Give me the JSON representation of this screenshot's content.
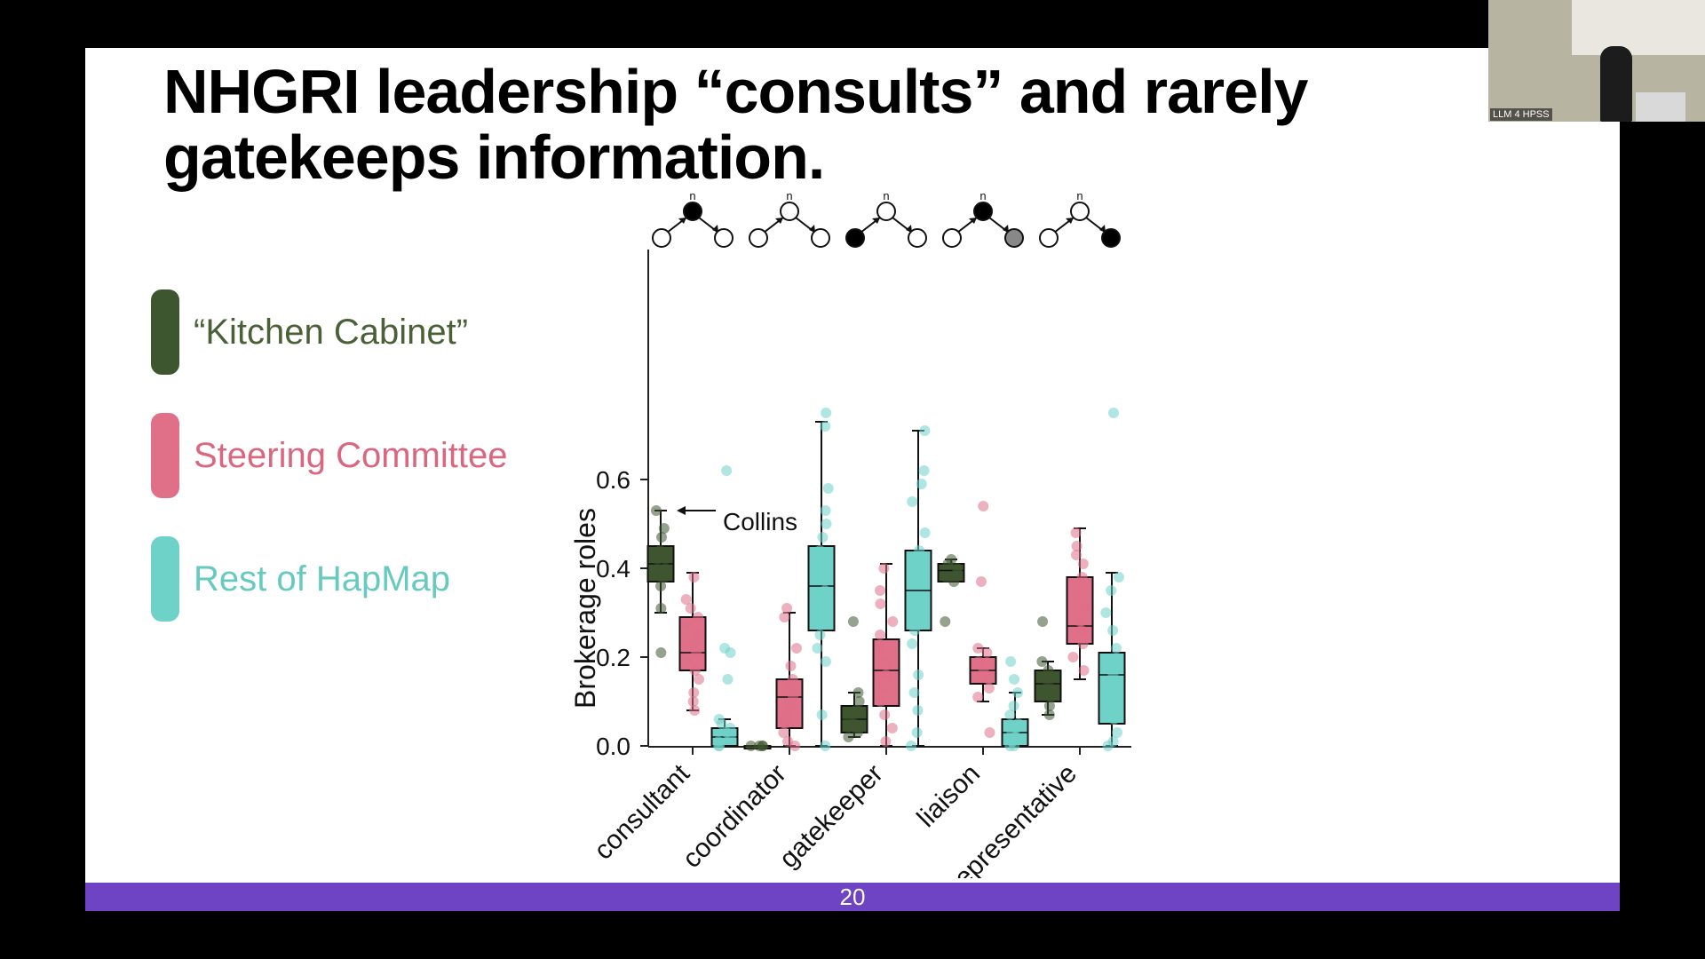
{
  "slide": {
    "title": "NHGRI leadership “consults” and rarely gatekeeps information.",
    "page_number": "20",
    "footer_color": "#6f44c4"
  },
  "legend": [
    {
      "label": "“Kitchen Cabinet”",
      "color": "#3e5630",
      "text_color": "#4a6137"
    },
    {
      "label": "Steering Committee",
      "color": "#df7088",
      "text_color": "#d9677f"
    },
    {
      "label": "Rest of HapMap",
      "color": "#6fd2c9",
      "text_color": "#66cabf"
    }
  ],
  "webcam": {
    "label": "LLM 4 HPSS"
  },
  "chart_data": {
    "type": "box",
    "ylabel": "Brokerage roles",
    "xlabel": "",
    "ylim": [
      0,
      0.75
    ],
    "yticks": [
      0.0,
      0.2,
      0.4,
      0.6
    ],
    "ytick_labels": [
      "0.0",
      "0.2",
      "0.4",
      "0.6"
    ],
    "categories": [
      "consultant",
      "coordinator",
      "gatekeeper",
      "liaison",
      "representative"
    ],
    "node_label": "n",
    "triads": [
      {
        "role": "consultant",
        "left": "open",
        "top": "filled",
        "right": "open"
      },
      {
        "role": "coordinator",
        "left": "open",
        "top": "open",
        "right": "open"
      },
      {
        "role": "gatekeeper",
        "left": "filled",
        "top": "open",
        "right": "open"
      },
      {
        "role": "liaison",
        "left": "open",
        "top": "filled",
        "right": "gray"
      },
      {
        "role": "representative",
        "left": "open",
        "top": "open",
        "right": "filled"
      }
    ],
    "annotation": {
      "text": "Collins",
      "category": "consultant",
      "series": "“Kitchen Cabinet”",
      "y": 0.53
    },
    "series": [
      {
        "name": "“Kitchen Cabinet”",
        "color": "#3e5630",
        "boxes": [
          {
            "min": 0.3,
            "q1": 0.37,
            "median": 0.41,
            "q3": 0.45,
            "max": 0.53,
            "points": [
              0.53,
              0.49,
              0.47,
              0.44,
              0.42,
              0.4,
              0.38,
              0.36,
              0.31,
              0.21
            ]
          },
          {
            "min": 0.0,
            "q1": 0.0,
            "median": 0.0,
            "q3": 0.0,
            "max": 0.0,
            "points": [
              0.0,
              0.0,
              0.0,
              0.0
            ]
          },
          {
            "min": 0.02,
            "q1": 0.03,
            "median": 0.06,
            "q3": 0.09,
            "max": 0.12,
            "points": [
              0.12,
              0.1,
              0.08,
              0.06,
              0.05,
              0.04,
              0.03,
              0.02,
              0.28
            ]
          },
          {
            "min": 0.37,
            "q1": 0.37,
            "median": 0.395,
            "q3": 0.41,
            "max": 0.42,
            "points": [
              0.42,
              0.41,
              0.4,
              0.39,
              0.38,
              0.37,
              0.28
            ]
          },
          {
            "min": 0.07,
            "q1": 0.1,
            "median": 0.14,
            "q3": 0.17,
            "max": 0.19,
            "points": [
              0.19,
              0.17,
              0.15,
              0.13,
              0.11,
              0.09,
              0.07,
              0.28
            ]
          }
        ]
      },
      {
        "name": "Steering Committee",
        "color": "#df7088",
        "boxes": [
          {
            "min": 0.08,
            "q1": 0.17,
            "median": 0.21,
            "q3": 0.29,
            "max": 0.39,
            "points": [
              0.38,
              0.33,
              0.31,
              0.29,
              0.27,
              0.25,
              0.23,
              0.21,
              0.19,
              0.17,
              0.15,
              0.12,
              0.1,
              0.08
            ]
          },
          {
            "min": 0.0,
            "q1": 0.04,
            "median": 0.11,
            "q3": 0.15,
            "max": 0.3,
            "points": [
              0.31,
              0.29,
              0.22,
              0.18,
              0.15,
              0.13,
              0.11,
              0.09,
              0.07,
              0.05,
              0.03,
              0.01,
              0.0
            ]
          },
          {
            "min": 0.0,
            "q1": 0.09,
            "median": 0.17,
            "q3": 0.24,
            "max": 0.41,
            "points": [
              0.4,
              0.35,
              0.32,
              0.28,
              0.25,
              0.22,
              0.19,
              0.16,
              0.13,
              0.1,
              0.07,
              0.04,
              0.01
            ]
          },
          {
            "min": 0.1,
            "q1": 0.14,
            "median": 0.17,
            "q3": 0.2,
            "max": 0.22,
            "points": [
              0.54,
              0.37,
              0.22,
              0.21,
              0.19,
              0.17,
              0.15,
              0.13,
              0.11,
              0.03
            ]
          },
          {
            "min": 0.15,
            "q1": 0.23,
            "median": 0.27,
            "q3": 0.38,
            "max": 0.49,
            "points": [
              0.48,
              0.45,
              0.43,
              0.41,
              0.38,
              0.34,
              0.31,
              0.28,
              0.26,
              0.23,
              0.2,
              0.17
            ]
          }
        ]
      },
      {
        "name": "Rest of HapMap",
        "color": "#6fd2c9",
        "boxes": [
          {
            "min": 0.0,
            "q1": 0.0,
            "median": 0.02,
            "q3": 0.04,
            "max": 0.06,
            "points": [
              0.62,
              0.22,
              0.21,
              0.15,
              0.06,
              0.05,
              0.04,
              0.03,
              0.02,
              0.01,
              0.0,
              0.0
            ]
          },
          {
            "min": 0.0,
            "q1": 0.26,
            "median": 0.36,
            "q3": 0.45,
            "max": 0.73,
            "points": [
              0.75,
              0.72,
              0.58,
              0.53,
              0.5,
              0.47,
              0.44,
              0.41,
              0.38,
              0.35,
              0.32,
              0.29,
              0.25,
              0.22,
              0.19,
              0.07,
              0.0
            ]
          },
          {
            "min": 0.0,
            "q1": 0.26,
            "median": 0.35,
            "q3": 0.44,
            "max": 0.71,
            "points": [
              0.71,
              0.62,
              0.59,
              0.55,
              0.48,
              0.44,
              0.41,
              0.37,
              0.33,
              0.29,
              0.26,
              0.23,
              0.16,
              0.12,
              0.08,
              0.03,
              0.0
            ]
          },
          {
            "min": 0.0,
            "q1": 0.0,
            "median": 0.03,
            "q3": 0.06,
            "max": 0.12,
            "points": [
              0.19,
              0.15,
              0.12,
              0.09,
              0.07,
              0.05,
              0.04,
              0.03,
              0.02,
              0.01,
              0.0,
              0.0
            ]
          },
          {
            "min": 0.0,
            "q1": 0.05,
            "median": 0.16,
            "q3": 0.21,
            "max": 0.39,
            "points": [
              0.75,
              0.38,
              0.35,
              0.3,
              0.26,
              0.22,
              0.19,
              0.16,
              0.13,
              0.1,
              0.06,
              0.03,
              0.01,
              0.0
            ]
          }
        ]
      }
    ]
  }
}
